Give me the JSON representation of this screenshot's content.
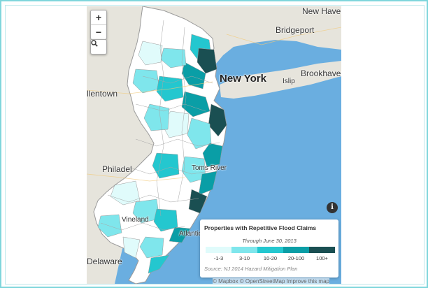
{
  "map": {
    "places": {
      "new_haven": "New Haven",
      "bridgeport": "Bridgeport",
      "new_york": "New York",
      "brookhaven": "Brookhaven",
      "islip": "Islip",
      "allentown": "llentown",
      "toms_river": "Toms River",
      "philadelphia": "Philadel",
      "vineland": "Vineland",
      "atlantic_city": "Atlantic City",
      "delaware": "Delaware"
    },
    "controls": {
      "zoom_in": "+",
      "zoom_out": "−",
      "search_icon": "search-icon",
      "info_icon": "info-icon"
    },
    "colors": {
      "water": "#6aaee0",
      "land": "#e6e4dc",
      "county_line": "#a7a7a7"
    }
  },
  "legend": {
    "title": "Properties with Repetitive Flood Claims",
    "subtitle": "Through June 30, 2013",
    "bins": [
      {
        "label": "-1-3",
        "color": "#e0fbfb"
      },
      {
        "label": "3-10",
        "color": "#7fe6ec"
      },
      {
        "label": "10-20",
        "color": "#24c7cf"
      },
      {
        "label": "20-100",
        "color": "#0a9ea6"
      },
      {
        "label": "100+",
        "color": "#1a4f52"
      }
    ],
    "source": "Source: NJ 2014 Hazard Mitigation Plan"
  },
  "attribution": "© Mapbox © OpenStreetMap Improve this map"
}
